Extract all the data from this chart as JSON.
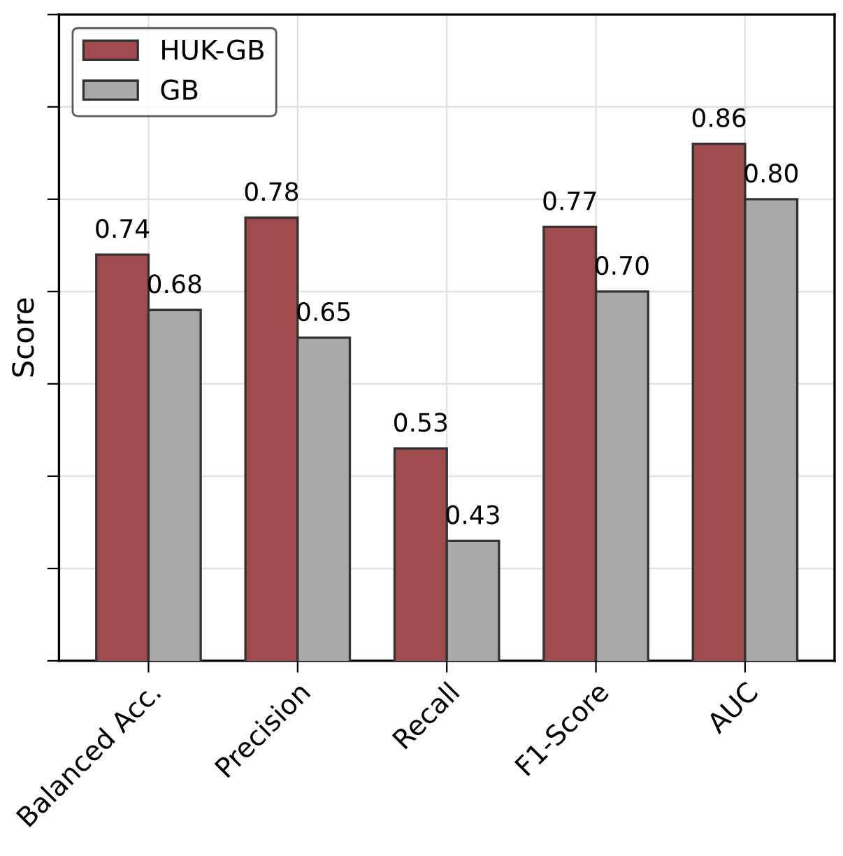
{
  "chart_data": {
    "type": "bar",
    "ylabel": "Score",
    "categories": [
      "Balanced Acc.",
      "Precision",
      "Recall",
      "F1-Score",
      "AUC"
    ],
    "series": [
      {
        "name": "HUK-GB",
        "color": "#a04b4d",
        "values": [
          0.74,
          0.78,
          0.53,
          0.77,
          0.86
        ],
        "value_labels": [
          "0.74",
          "0.78",
          "0.53",
          "0.77",
          "0.86"
        ]
      },
      {
        "name": "GB",
        "color": "#a9a9a9",
        "values": [
          0.68,
          0.65,
          0.43,
          0.7,
          0.8
        ],
        "value_labels": [
          "0.68",
          "0.65",
          "0.43",
          "0.70",
          "0.80"
        ]
      }
    ],
    "ylim": [
      0.3,
      1.0
    ],
    "yticks": [
      {
        "value": 0.3,
        "label": null
      },
      {
        "value": 0.4,
        "label": null
      },
      {
        "value": 0.5,
        "label": null
      },
      {
        "value": 0.6,
        "label": null
      },
      {
        "value": 0.7,
        "label": null
      },
      {
        "value": 0.8,
        "label": null
      },
      {
        "value": 0.9,
        "label": null
      },
      {
        "value": 1.0,
        "label": null
      }
    ],
    "tick_labels": "x",
    "grid": true,
    "legend": "top left"
  }
}
